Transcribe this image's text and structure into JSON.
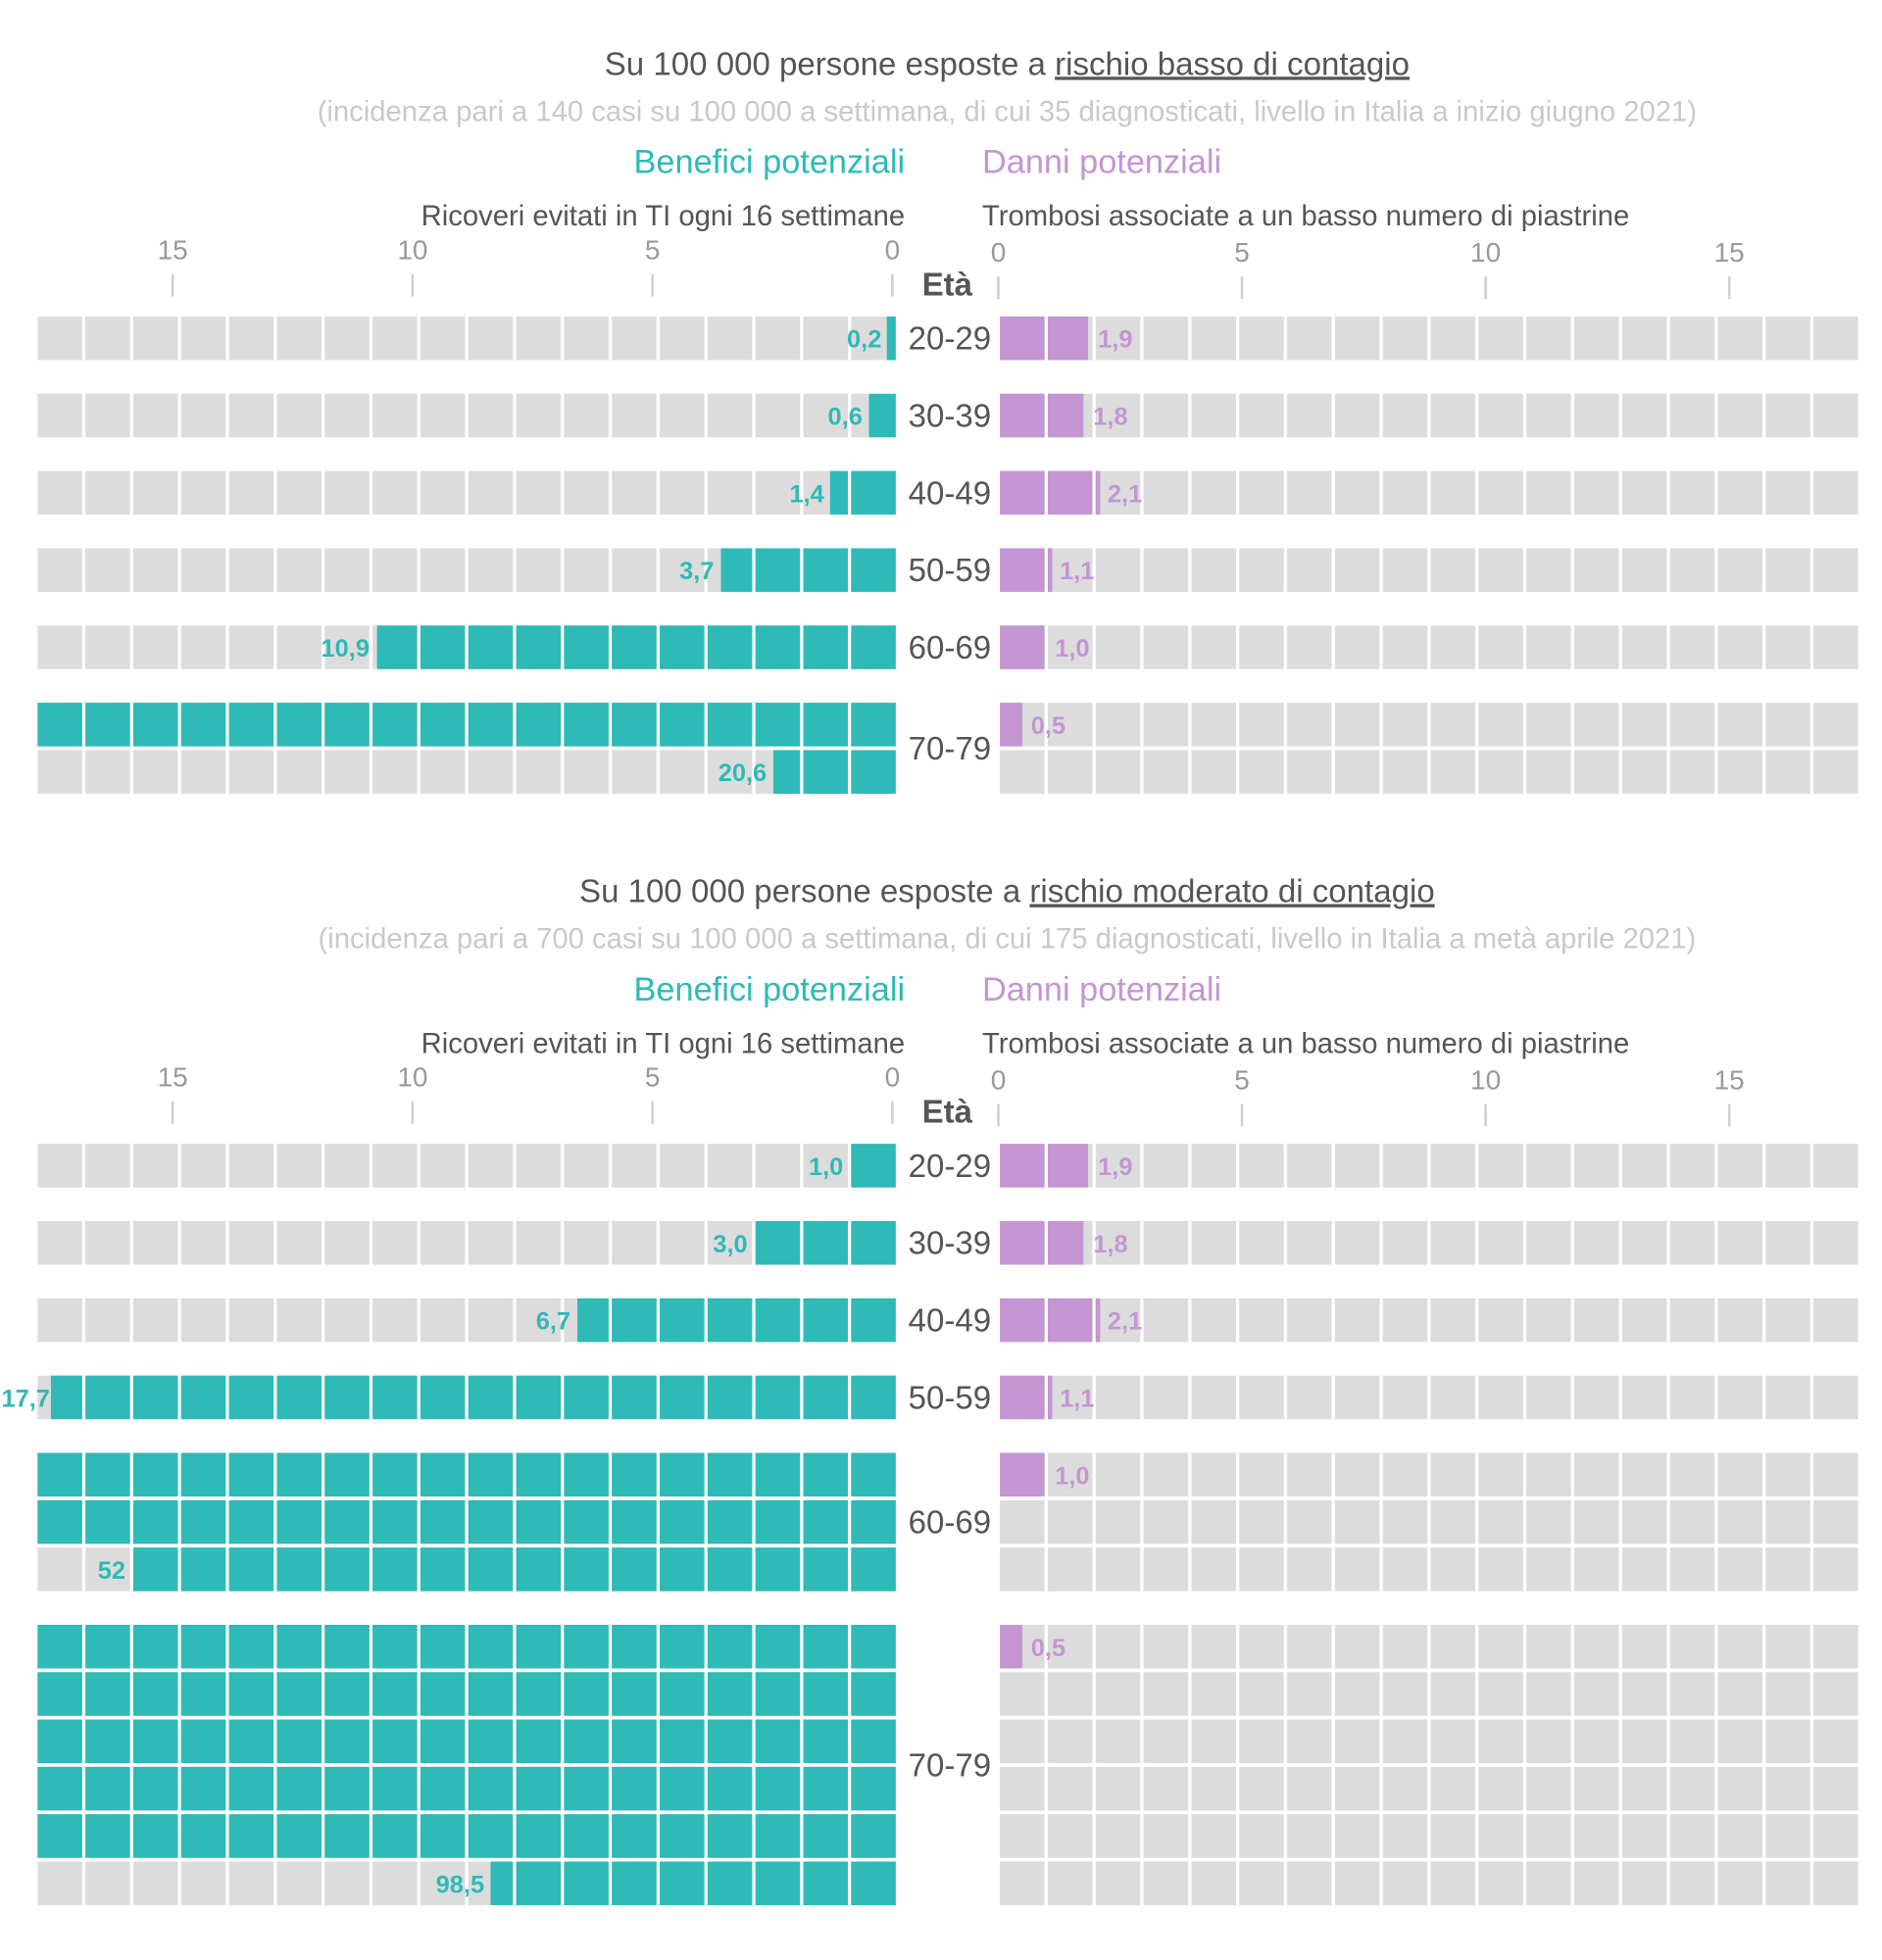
{
  "colors": {
    "benefit": "#2ebab6",
    "harm": "#c495d3",
    "empty": "#dcdcdc",
    "text": "#555555",
    "subtitle": "#c9c9c9",
    "tick": "#999999"
  },
  "chart_data": [
    {
      "type": "waffle-bar",
      "title_prefix": "Su 100 000 persone esposte a ",
      "title_emphasis": "rischio basso di contagio",
      "subtitle": "(incidenza pari a 140 casi su 100 000 a settimana, di cui 35 diagnosticati, livello in Italia a inizio giugno 2021)",
      "left_header": "Benefici potenziali",
      "right_header": "Danni potenziali",
      "left_label": "Ricoveri evitati in TI ogni 16 settimane",
      "right_label": "Trombosi associate a un basso numero di piastrine",
      "age_label": "Età",
      "left_ticks": [
        "15",
        "10",
        "5",
        "0"
      ],
      "right_ticks": [
        "0",
        "5",
        "10",
        "15"
      ],
      "units_per_row": 18,
      "rows": [
        {
          "age": "20-29",
          "benefit": 0.2,
          "benefit_label": "0,2",
          "harm": 1.9,
          "harm_label": "1,9"
        },
        {
          "age": "30-39",
          "benefit": 0.6,
          "benefit_label": "0,6",
          "harm": 1.8,
          "harm_label": "1,8"
        },
        {
          "age": "40-49",
          "benefit": 1.4,
          "benefit_label": "1,4",
          "harm": 2.1,
          "harm_label": "2,1"
        },
        {
          "age": "50-59",
          "benefit": 3.7,
          "benefit_label": "3,7",
          "harm": 1.1,
          "harm_label": "1,1"
        },
        {
          "age": "60-69",
          "benefit": 10.9,
          "benefit_label": "10,9",
          "harm": 1.0,
          "harm_label": "1,0"
        },
        {
          "age": "70-79",
          "benefit": 20.6,
          "benefit_label": "20,6",
          "harm": 0.5,
          "harm_label": "0,5"
        }
      ]
    },
    {
      "type": "waffle-bar",
      "title_prefix": "Su 100 000 persone esposte a ",
      "title_emphasis": "rischio moderato di contagio",
      "subtitle": "(incidenza pari a 700 casi su 100 000 a settimana, di cui 175 diagnosticati, livello in Italia a metà aprile 2021)",
      "left_header": "Benefici potenziali",
      "right_header": "Danni potenziali",
      "left_label": "Ricoveri evitati in TI ogni 16 settimane",
      "right_label": "Trombosi associate a un basso numero di piastrine",
      "age_label": "Età",
      "left_ticks": [
        "15",
        "10",
        "5",
        "0"
      ],
      "right_ticks": [
        "0",
        "5",
        "10",
        "15"
      ],
      "units_per_row": 18,
      "rows": [
        {
          "age": "20-29",
          "benefit": 1.0,
          "benefit_label": "1,0",
          "harm": 1.9,
          "harm_label": "1,9"
        },
        {
          "age": "30-39",
          "benefit": 3.0,
          "benefit_label": "3,0",
          "harm": 1.8,
          "harm_label": "1,8"
        },
        {
          "age": "40-49",
          "benefit": 6.7,
          "benefit_label": "6,7",
          "harm": 2.1,
          "harm_label": "2,1"
        },
        {
          "age": "50-59",
          "benefit": 17.7,
          "benefit_label": "17,7",
          "harm": 1.1,
          "harm_label": "1,1"
        },
        {
          "age": "60-69",
          "benefit": 52,
          "benefit_label": "52",
          "harm": 1.0,
          "harm_label": "1,0"
        },
        {
          "age": "70-79",
          "benefit": 98.5,
          "benefit_label": "98,5",
          "harm": 0.5,
          "harm_label": "0,5"
        }
      ]
    }
  ]
}
